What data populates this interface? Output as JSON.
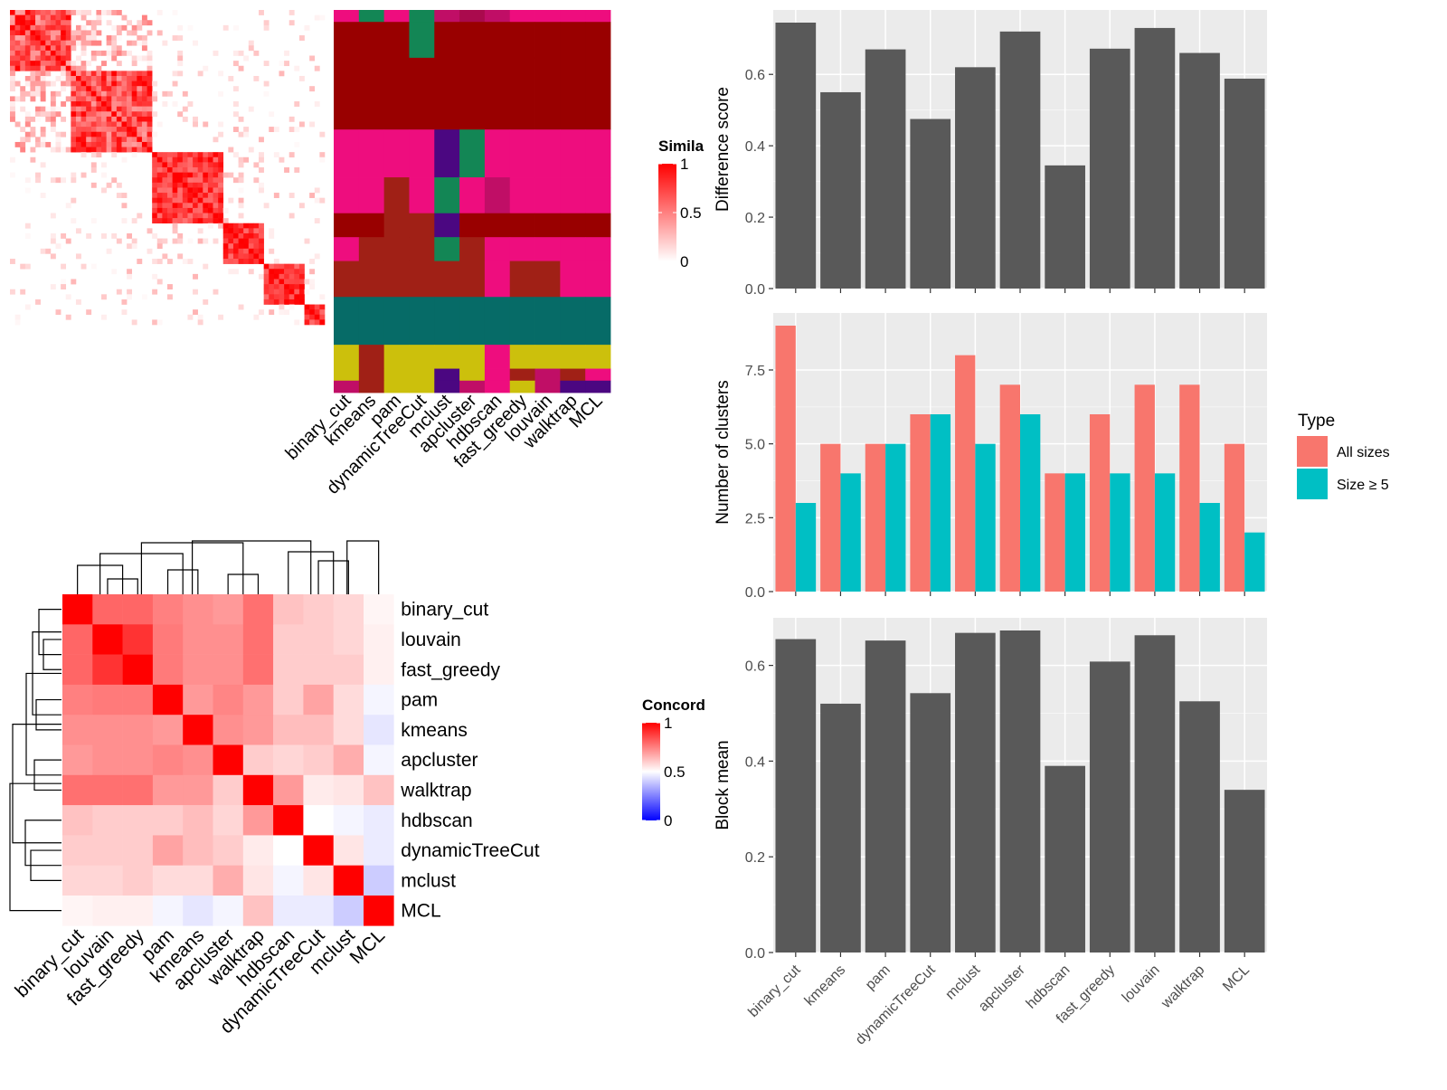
{
  "methods": [
    "binary_cut",
    "kmeans",
    "pam",
    "dynamicTreeCut",
    "mclust",
    "apcluster",
    "hdbscan",
    "fast_greedy",
    "louvain",
    "walktrap",
    "MCL"
  ],
  "colors": {
    "panel_bg": "#EBEBEB",
    "grid_major": "#FFFFFF",
    "bar_gray": "#595959",
    "all_sizes": "#F8766D",
    "size_ge5": "#00BFC4",
    "heat_high": "#FF0000",
    "heat_low": "#FFFFFF",
    "heat_neg": "#0000FF",
    "cluster_palette": [
      "#990000",
      "#EE0D7E",
      "#138655",
      "#A02016",
      "#CCC00C",
      "#066B67",
      "#C00E66",
      "#4B0781",
      "#AA0A4D"
    ]
  },
  "similarity_heatmap": {
    "legend_title": "Simila",
    "legend_ticks": [
      "1",
      "0.5",
      "0"
    ],
    "n": 62,
    "blocks": [
      [
        0,
        12
      ],
      [
        12,
        28
      ],
      [
        28,
        42
      ],
      [
        42,
        50
      ],
      [
        50,
        58
      ],
      [
        58,
        62
      ]
    ]
  },
  "membership_heatmap": {
    "column_labels": [
      "binary_cut",
      "kmeans",
      "pam",
      "dynamicTreeCut",
      "mclust",
      "apcluster",
      "hdbscan",
      "fast_greedy",
      "louvain",
      "walktrap",
      "MCL"
    ],
    "row_bands": [
      {
        "rows": 2,
        "colors": [
          1,
          2,
          1,
          2,
          6,
          8,
          6,
          1,
          1,
          1,
          1
        ]
      },
      {
        "rows": 6,
        "colors": [
          0,
          0,
          0,
          2,
          0,
          0,
          0,
          0,
          0,
          0,
          0
        ]
      },
      {
        "rows": 12,
        "colors": [
          0,
          0,
          0,
          0,
          0,
          0,
          0,
          0,
          0,
          0,
          0
        ]
      },
      {
        "rows": 8,
        "colors": [
          1,
          1,
          1,
          1,
          7,
          2,
          1,
          1,
          1,
          1,
          1
        ]
      },
      {
        "rows": 6,
        "colors": [
          1,
          1,
          3,
          1,
          2,
          1,
          6,
          1,
          1,
          1,
          1
        ]
      },
      {
        "rows": 4,
        "colors": [
          0,
          0,
          3,
          3,
          7,
          0,
          0,
          0,
          0,
          0,
          0
        ]
      },
      {
        "rows": 4,
        "colors": [
          1,
          3,
          3,
          3,
          2,
          3,
          1,
          1,
          1,
          1,
          1
        ]
      },
      {
        "rows": 6,
        "colors": [
          3,
          3,
          3,
          3,
          3,
          3,
          1,
          3,
          3,
          1,
          1
        ]
      },
      {
        "rows": 8,
        "colors": [
          5,
          5,
          5,
          5,
          5,
          5,
          5,
          5,
          5,
          5,
          5
        ]
      },
      {
        "rows": 4,
        "colors": [
          4,
          3,
          4,
          4,
          4,
          4,
          1,
          4,
          4,
          4,
          4
        ]
      },
      {
        "rows": 2,
        "colors": [
          4,
          3,
          4,
          4,
          7,
          4,
          1,
          3,
          6,
          3,
          1
        ]
      },
      {
        "rows": 2,
        "colors": [
          6,
          3,
          4,
          4,
          7,
          6,
          1,
          4,
          6,
          7,
          7
        ]
      }
    ]
  },
  "concordance_heatmap": {
    "legend_title": "Concord",
    "legend_ticks": [
      "1",
      "0.5",
      "0"
    ],
    "labels": [
      "binary_cut",
      "louvain",
      "fast_greedy",
      "pam",
      "kmeans",
      "apcluster",
      "walktrap",
      "hdbscan",
      "dynamicTreeCut",
      "mclust",
      "MCL"
    ],
    "matrix": [
      [
        1.0,
        0.8,
        0.8,
        0.75,
        0.72,
        0.7,
        0.78,
        0.62,
        0.6,
        0.58,
        0.52
      ],
      [
        0.8,
        1.0,
        0.9,
        0.76,
        0.72,
        0.72,
        0.78,
        0.6,
        0.6,
        0.58,
        0.53
      ],
      [
        0.8,
        0.9,
        1.0,
        0.76,
        0.72,
        0.72,
        0.78,
        0.6,
        0.6,
        0.6,
        0.53
      ],
      [
        0.75,
        0.76,
        0.76,
        1.0,
        0.7,
        0.74,
        0.7,
        0.6,
        0.68,
        0.57,
        0.48
      ],
      [
        0.72,
        0.72,
        0.72,
        0.7,
        1.0,
        0.72,
        0.7,
        0.63,
        0.63,
        0.57,
        0.45
      ],
      [
        0.7,
        0.72,
        0.72,
        0.74,
        0.72,
        1.0,
        0.6,
        0.58,
        0.6,
        0.66,
        0.48
      ],
      [
        0.78,
        0.78,
        0.78,
        0.7,
        0.7,
        0.6,
        1.0,
        0.7,
        0.54,
        0.55,
        0.62
      ],
      [
        0.62,
        0.6,
        0.6,
        0.6,
        0.63,
        0.58,
        0.7,
        1.0,
        0.5,
        0.48,
        0.46
      ],
      [
        0.6,
        0.6,
        0.6,
        0.68,
        0.63,
        0.6,
        0.54,
        0.5,
        1.0,
        0.55,
        0.46
      ],
      [
        0.58,
        0.58,
        0.6,
        0.57,
        0.57,
        0.66,
        0.55,
        0.48,
        0.55,
        1.0,
        0.4
      ],
      [
        0.52,
        0.53,
        0.53,
        0.48,
        0.45,
        0.48,
        0.62,
        0.46,
        0.46,
        0.4,
        1.0
      ]
    ]
  },
  "chart_data": [
    {
      "type": "bar",
      "categories": [
        "binary_cut",
        "kmeans",
        "pam",
        "dynamicTreeCut",
        "mclust",
        "apcluster",
        "hdbscan",
        "fast_greedy",
        "louvain",
        "walktrap",
        "MCL"
      ],
      "values": [
        0.745,
        0.55,
        0.67,
        0.475,
        0.62,
        0.72,
        0.345,
        0.672,
        0.73,
        0.66,
        0.588
      ],
      "ylabel": "Difference score",
      "ylim": [
        0,
        0.745
      ],
      "yticks": [
        "0.0",
        "0.2",
        "0.4",
        "0.6"
      ],
      "grid": true
    },
    {
      "type": "bar",
      "categories": [
        "binary_cut",
        "kmeans",
        "pam",
        "dynamicTreeCut",
        "mclust",
        "apcluster",
        "hdbscan",
        "fast_greedy",
        "louvain",
        "walktrap",
        "MCL"
      ],
      "series": [
        {
          "name": "All sizes",
          "values": [
            9,
            5,
            5,
            6,
            8,
            7,
            4,
            6,
            7,
            7,
            5
          ]
        },
        {
          "name": "Size ≥ 5",
          "values": [
            3,
            4,
            5,
            6,
            5,
            6,
            4,
            4,
            4,
            3,
            2
          ]
        }
      ],
      "ylabel": "Number of clusters",
      "ylim": [
        0,
        9
      ],
      "yticks": [
        "0.0",
        "2.5",
        "5.0",
        "7.5"
      ],
      "legend_title": "Type",
      "legend_position": "right",
      "grid": true
    },
    {
      "type": "bar",
      "categories": [
        "binary_cut",
        "kmeans",
        "pam",
        "dynamicTreeCut",
        "mclust",
        "apcluster",
        "hdbscan",
        "fast_greedy",
        "louvain",
        "walktrap",
        "MCL"
      ],
      "values": [
        0.655,
        0.52,
        0.652,
        0.542,
        0.668,
        0.673,
        0.39,
        0.608,
        0.663,
        0.525,
        0.34
      ],
      "ylabel": "Block mean",
      "ylim": [
        0,
        0.673
      ],
      "yticks": [
        "0.0",
        "0.2",
        "0.4",
        "0.6"
      ],
      "grid": true
    }
  ]
}
